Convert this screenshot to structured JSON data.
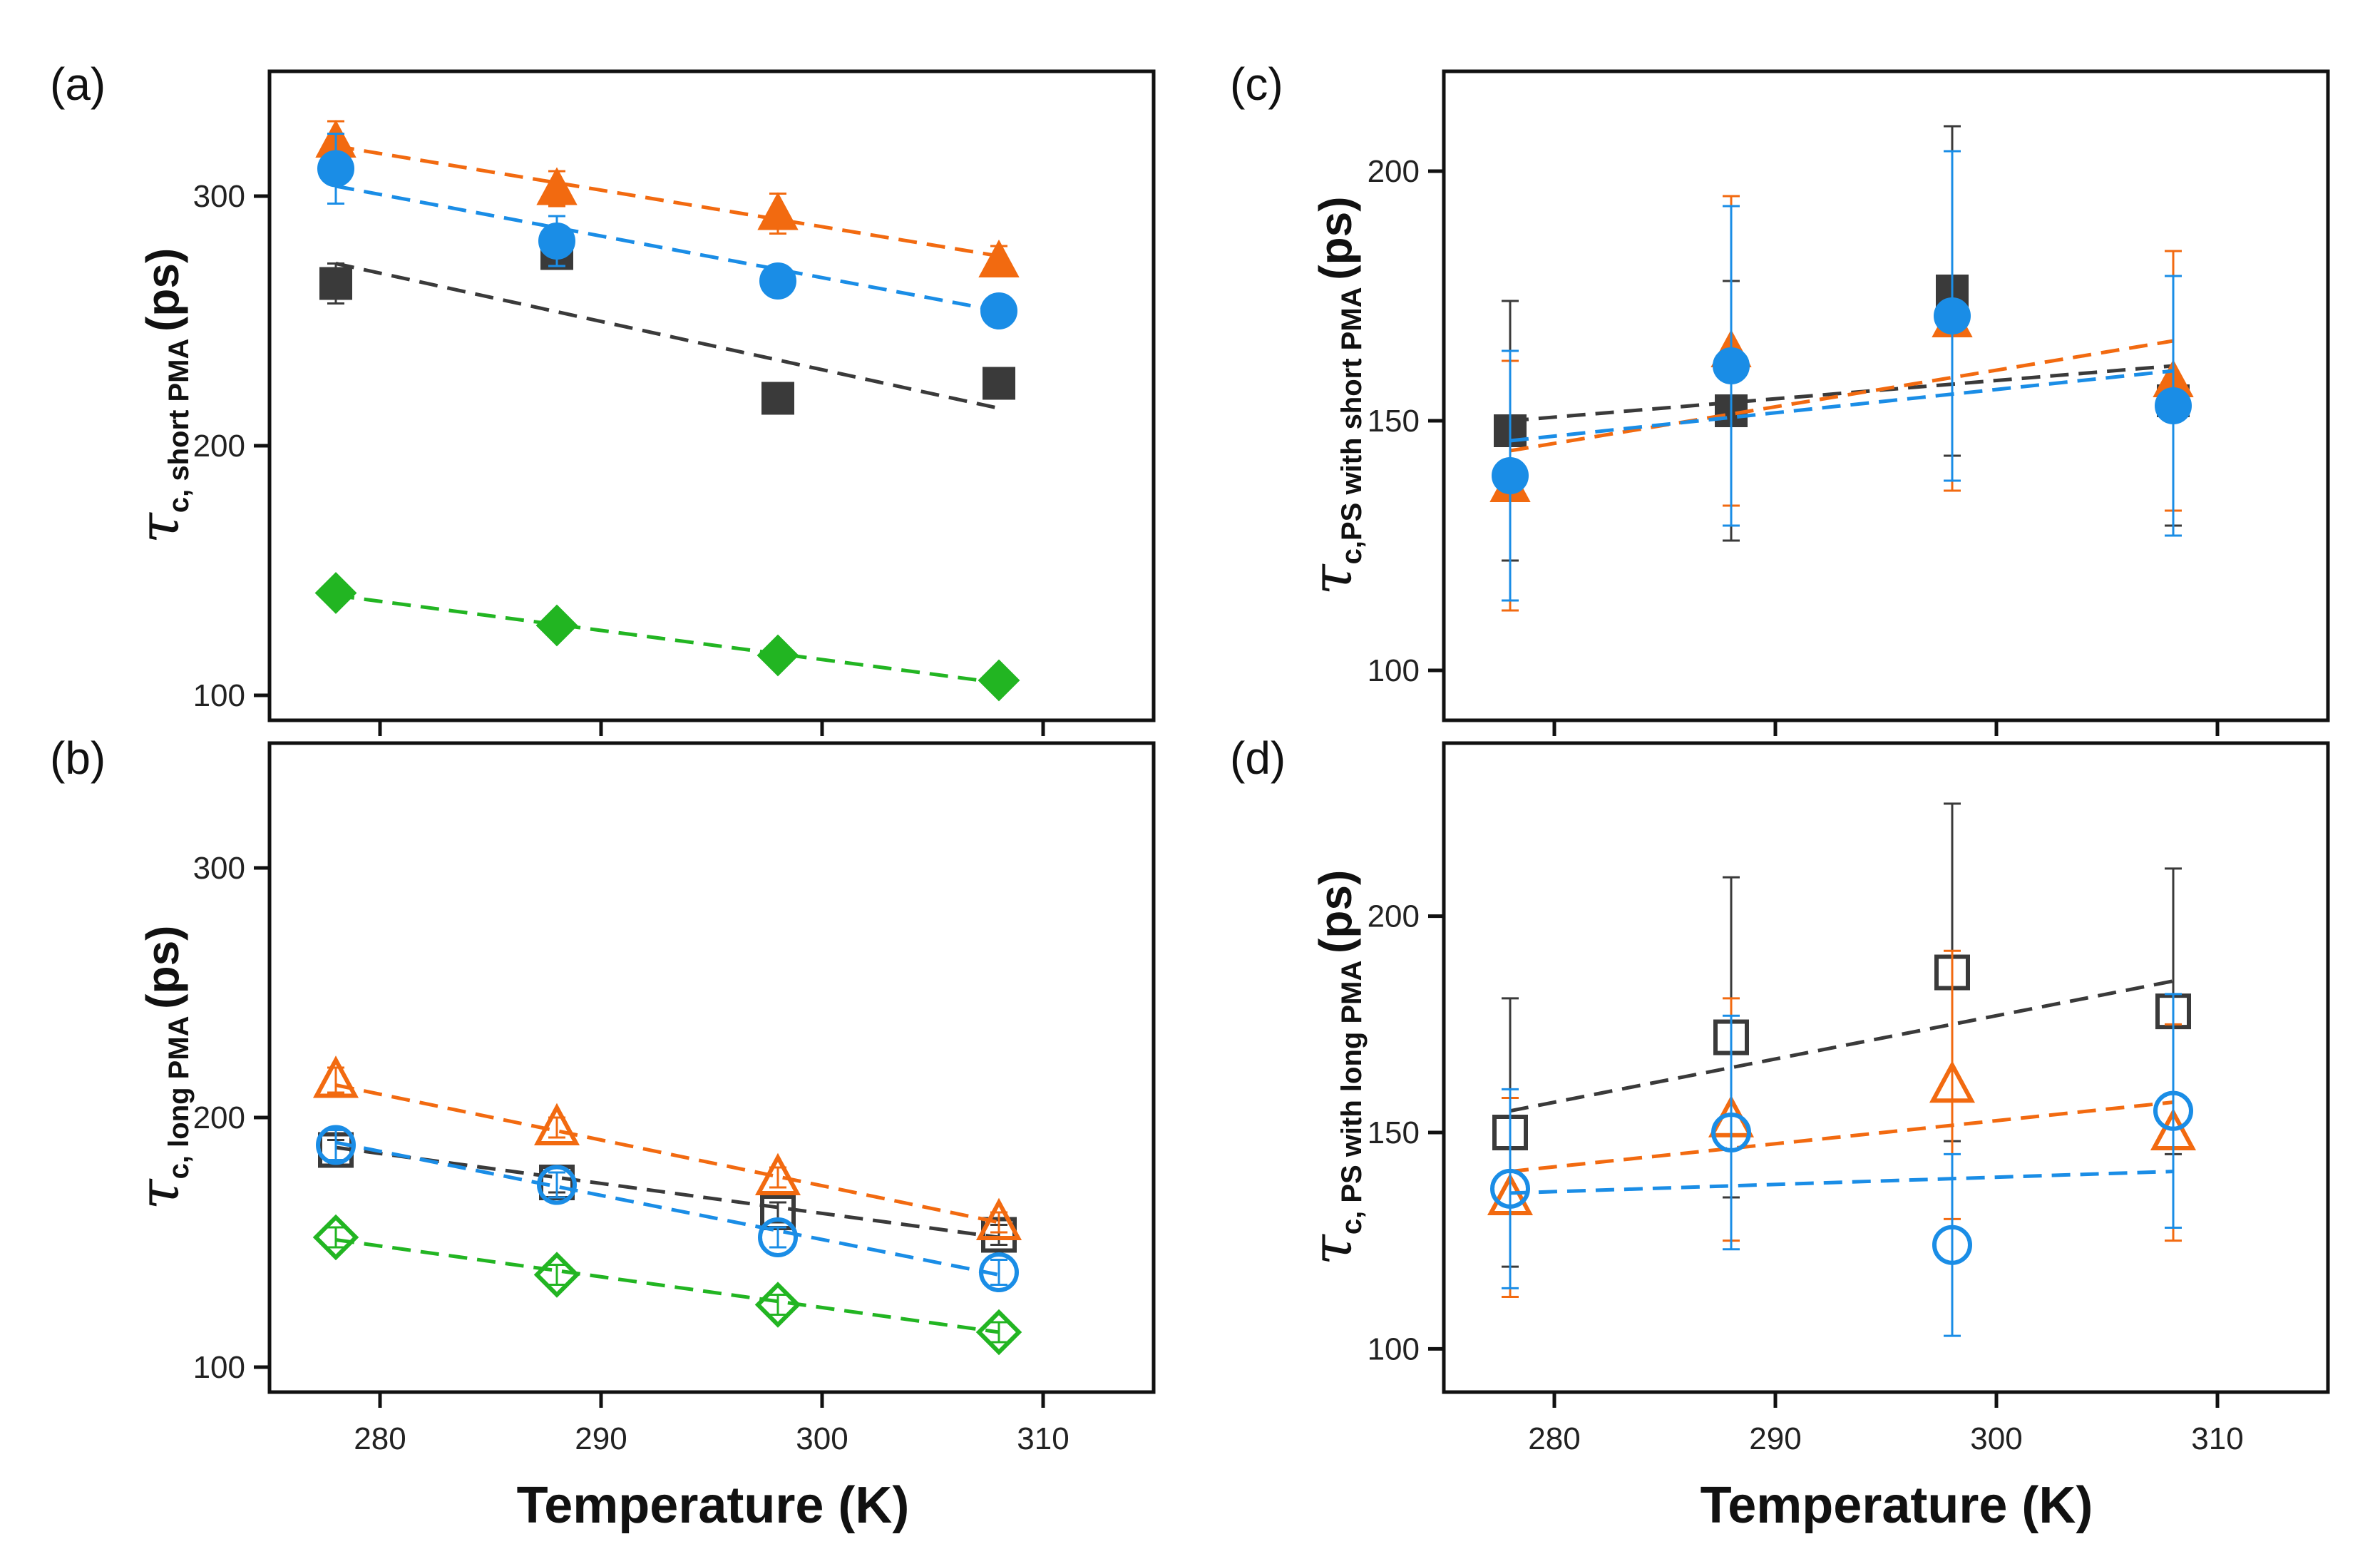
{
  "figure": {
    "xlabel_shared": "Temperature (K)"
  },
  "colors": {
    "sample_1": "#3a3a3a",
    "sample_2": "#f26a10",
    "sample_3": "#1a8de6",
    "sample_4": "#22b522"
  },
  "chart_data": [
    {
      "id": "a",
      "panel_label": "(a)",
      "type": "scatter",
      "ylabel_tau": "τ",
      "ylabel_sub": "c, short PMA",
      "ylabel_unit": "(ps)",
      "xlim": [
        275,
        315
      ],
      "ylim": [
        90,
        350
      ],
      "xticks": [
        280,
        290,
        300,
        310
      ],
      "yticks": [
        100,
        200,
        300
      ],
      "show_xtick_labels": false,
      "filled": true,
      "series": [
        {
          "marker": "square",
          "color": "#3a3a3a",
          "x": [
            278,
            288,
            298,
            308
          ],
          "y": [
            265,
            277,
            219,
            225
          ],
          "err": [
            8,
            6,
            4,
            5
          ],
          "fit": [
            273,
            215
          ]
        },
        {
          "marker": "triangle",
          "color": "#f26a10",
          "x": [
            278,
            288,
            298,
            308
          ],
          "y": [
            322,
            303,
            293,
            274
          ],
          "err": [
            8,
            7,
            8,
            6
          ],
          "fit": [
            320,
            276
          ]
        },
        {
          "marker": "circle",
          "color": "#1a8de6",
          "x": [
            278,
            288,
            298,
            308
          ],
          "y": [
            311,
            282,
            266,
            254
          ],
          "err": [
            14,
            10,
            6,
            6
          ],
          "fit": [
            304,
            254
          ]
        },
        {
          "marker": "diamond",
          "color": "#22b522",
          "x": [
            278,
            288,
            298,
            308
          ],
          "y": [
            141,
            128,
            116,
            106
          ],
          "err": [
            4,
            4,
            3,
            3
          ],
          "fit": [
            140,
            105
          ]
        }
      ]
    },
    {
      "id": "b",
      "panel_label": "(b)",
      "type": "scatter",
      "ylabel_tau": "τ",
      "ylabel_sub": "c, long PMA",
      "ylabel_unit": "(ps)",
      "xlim": [
        275,
        315
      ],
      "ylim": [
        90,
        350
      ],
      "xticks": [
        280,
        290,
        300,
        310
      ],
      "yticks": [
        100,
        200,
        300
      ],
      "show_xtick_labels": true,
      "filled": false,
      "series": [
        {
          "marker": "square",
          "color": "#3a3a3a",
          "x": [
            278,
            288,
            298,
            308
          ],
          "y": [
            187,
            174,
            162,
            153
          ],
          "err": [
            4,
            4,
            4,
            4
          ],
          "fit": [
            188,
            152
          ]
        },
        {
          "marker": "triangle",
          "color": "#f26a10",
          "x": [
            278,
            288,
            298,
            308
          ],
          "y": [
            215,
            196,
            176,
            158
          ],
          "err": [
            5,
            4,
            4,
            4
          ],
          "fit": [
            213,
            158
          ]
        },
        {
          "marker": "circle",
          "color": "#1a8de6",
          "x": [
            278,
            288,
            298,
            308
          ],
          "y": [
            189,
            173,
            152,
            138
          ],
          "err": [
            6,
            5,
            4,
            5
          ],
          "fit": [
            190,
            137
          ]
        },
        {
          "marker": "diamond",
          "color": "#22b522",
          "x": [
            278,
            288,
            298,
            308
          ],
          "y": [
            152,
            137,
            125,
            114
          ],
          "err": [
            4,
            4,
            4,
            4
          ],
          "fit": [
            151,
            114
          ]
        }
      ]
    },
    {
      "id": "c",
      "panel_label": "(c)",
      "type": "scatter",
      "ylabel_tau": "τ",
      "ylabel_sub": "c,PS with short PMA",
      "ylabel_unit": "(ps)",
      "xlim": [
        275,
        315
      ],
      "ylim": [
        90,
        220
      ],
      "xticks": [
        280,
        290,
        300,
        310
      ],
      "yticks": [
        100,
        150,
        200
      ],
      "show_xtick_labels": false,
      "filled": true,
      "series": [
        {
          "marker": "square",
          "color": "#3a3a3a",
          "x": [
            278,
            288,
            298,
            308
          ],
          "y": [
            148,
            152,
            176,
            154
          ],
          "err": [
            26,
            26,
            33,
            25
          ],
          "fit": [
            150,
            161
          ]
        },
        {
          "marker": "triangle",
          "color": "#f26a10",
          "x": [
            278,
            288,
            298,
            308
          ],
          "y": [
            137,
            164,
            170,
            158
          ],
          "err": [
            25,
            31,
            34,
            26
          ],
          "fit": [
            144,
            166
          ]
        },
        {
          "marker": "circle",
          "color": "#1a8de6",
          "x": [
            278,
            288,
            298,
            308
          ],
          "y": [
            139,
            161,
            171,
            153
          ],
          "err": [
            25,
            32,
            33,
            26
          ],
          "fit": [
            146,
            160
          ]
        }
      ]
    },
    {
      "id": "d",
      "panel_label": "(d)",
      "type": "scatter",
      "ylabel_tau": "τ",
      "ylabel_sub": "c, PS with long PMA",
      "ylabel_unit": "(ps)",
      "xlim": [
        275,
        315
      ],
      "ylim": [
        90,
        240
      ],
      "xticks": [
        280,
        290,
        300,
        310
      ],
      "yticks": [
        100,
        150,
        200
      ],
      "show_xtick_labels": true,
      "filled": false,
      "series": [
        {
          "marker": "square",
          "color": "#3a3a3a",
          "x": [
            278,
            288,
            298,
            308
          ],
          "y": [
            150,
            172,
            187,
            178
          ],
          "err": [
            31,
            37,
            39,
            33
          ],
          "fit": [
            155,
            185
          ]
        },
        {
          "marker": "triangle",
          "color": "#f26a10",
          "x": [
            278,
            288,
            298,
            308
          ],
          "y": [
            135,
            153,
            161,
            150
          ],
          "err": [
            23,
            28,
            31,
            25
          ],
          "fit": [
            141,
            157
          ]
        },
        {
          "marker": "circle",
          "color": "#1a8de6",
          "x": [
            278,
            288,
            298,
            308
          ],
          "y": [
            137,
            150,
            124,
            155
          ],
          "err": [
            23,
            27,
            21,
            27
          ],
          "fit": [
            136,
            141
          ]
        }
      ]
    }
  ]
}
